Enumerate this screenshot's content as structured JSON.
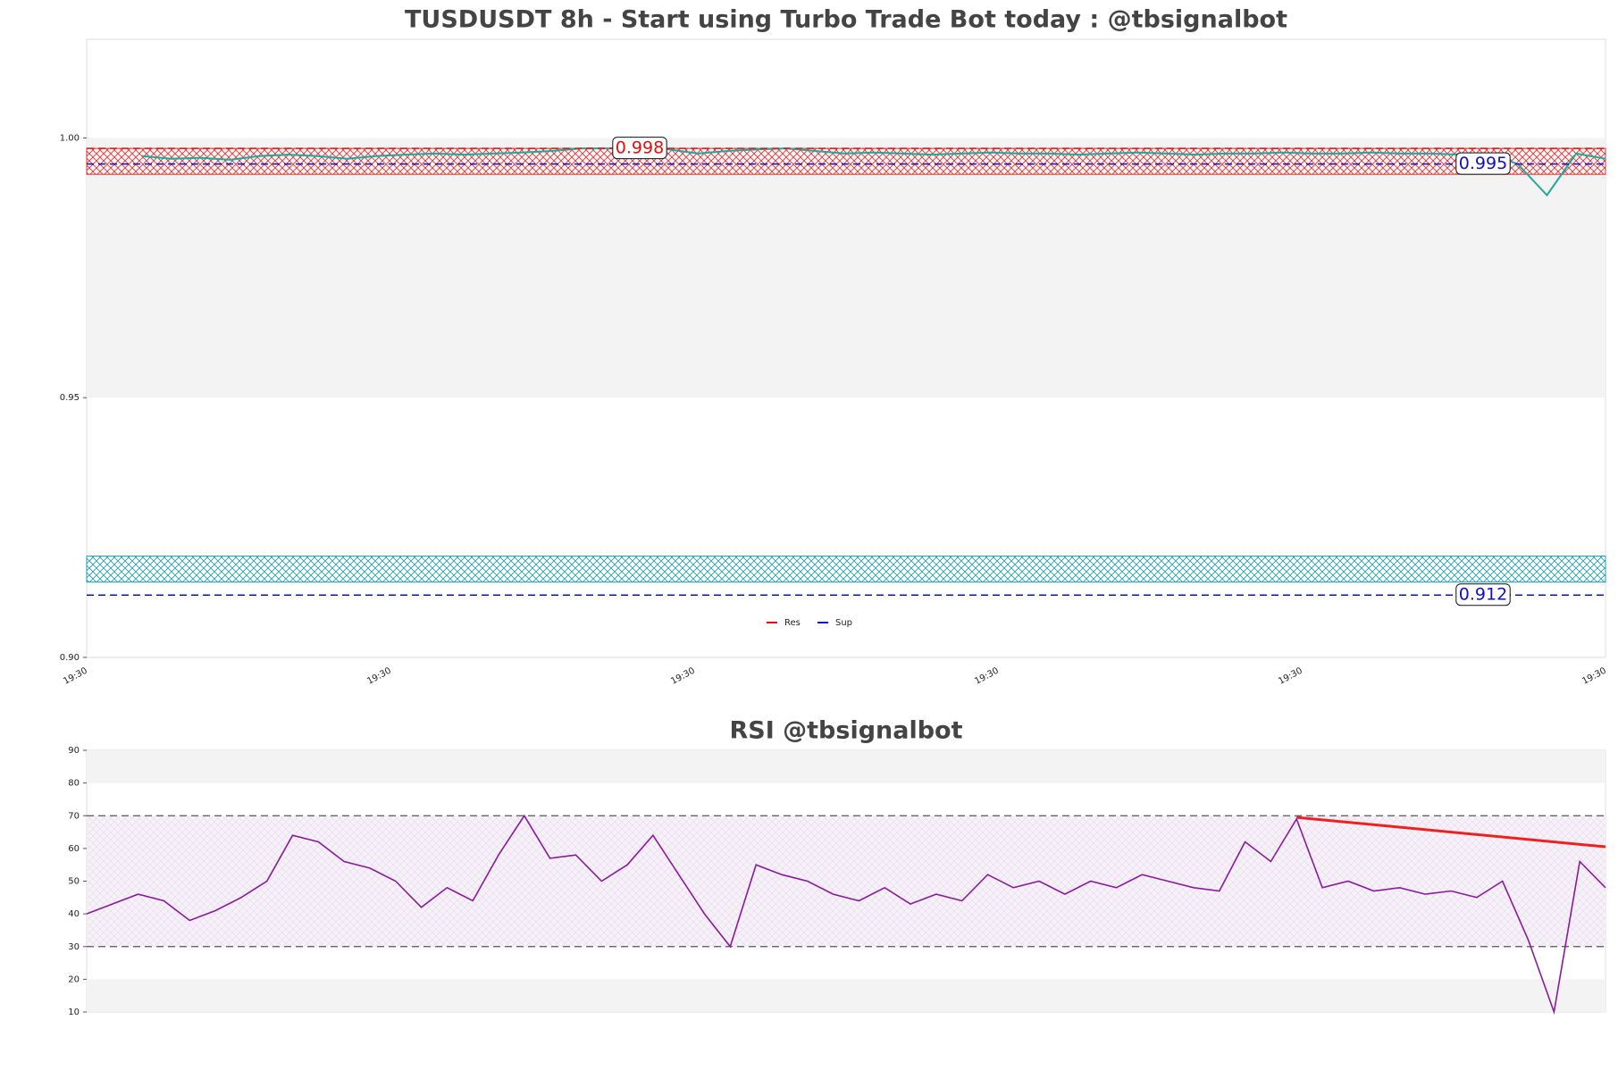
{
  "chart_data": [
    {
      "type": "line",
      "title": "TUSDUSDT 8h - Start using Turbo Trade Bot today : @tbsignalbot",
      "categories": [
        "19:30",
        null,
        null,
        null,
        null,
        null,
        null,
        null,
        null,
        null,
        "19:30",
        null,
        null,
        null,
        null,
        null,
        null,
        null,
        null,
        null,
        "19:30",
        null,
        null,
        null,
        null,
        null,
        null,
        null,
        null,
        null,
        "19:30",
        null,
        null,
        null,
        null,
        null,
        null,
        null,
        null,
        null,
        "19:30",
        null,
        null,
        null,
        null,
        null,
        null,
        null,
        null,
        null,
        "19:30"
      ],
      "series": [
        {
          "color": "#26a69a",
          "values": [
            0.9965,
            0.996,
            0.9962,
            0.9958,
            0.9965,
            0.9968,
            0.9965,
            0.996,
            0.9965,
            0.9968,
            0.997,
            0.9968,
            0.997,
            0.9972,
            0.9975,
            0.998,
            0.998,
            0.9985,
            0.9978,
            0.997,
            0.9975,
            0.9978,
            0.998,
            0.9975,
            0.997,
            0.9972,
            0.997,
            0.9968,
            0.997,
            0.9972,
            0.997,
            0.997,
            0.9968,
            0.997,
            0.9972,
            0.997,
            0.9968,
            0.997,
            0.997,
            0.9972,
            0.997,
            0.997,
            0.9972,
            0.997,
            0.997,
            0.9968,
            0.997,
            0.995,
            0.989,
            0.997,
            0.996
          ]
        }
      ],
      "levels": [
        {
          "name": "Res",
          "color": "#e01010",
          "values": [
            0.998
          ]
        },
        {
          "name": "Sup",
          "color": "#1010c0",
          "values": [
            0.995,
            0.912
          ]
        }
      ],
      "zones": [
        {
          "range": [
            0.993,
            0.998
          ],
          "color": "#e03030"
        },
        {
          "range": [
            0.9145,
            0.9195
          ],
          "color": "#1a9bb0"
        }
      ],
      "ylim": [
        0.9,
        1.019
      ],
      "yticks": [
        {
          "value": 0.9,
          "label": "0.90"
        },
        0.95,
        {
          "value": 1,
          "label": "1.00"
        }
      ]
    },
    {
      "type": "line",
      "title": "RSI @tbsignalbot",
      "series": [
        {
          "color": "#8b1a9b",
          "values": [
            40,
            43,
            46,
            44,
            38,
            41,
            45,
            50,
            64,
            62,
            56,
            54,
            50,
            42,
            48,
            44,
            58,
            70,
            57,
            58,
            50,
            55,
            64,
            52,
            40,
            30,
            55,
            52,
            50,
            46,
            44,
            48,
            43,
            46,
            44,
            52,
            48,
            50,
            46,
            50,
            48,
            52,
            50,
            48,
            47,
            62,
            56,
            69,
            48,
            50,
            47,
            48,
            46,
            47,
            45,
            50,
            32,
            10,
            56,
            48
          ]
        }
      ],
      "trendline": {
        "color": "#ee2020",
        "x": [
          47,
          59
        ],
        "values": [
          69.5,
          60.5
        ]
      },
      "overbought": 70,
      "oversold": 30,
      "ylim": [
        10,
        90
      ],
      "yticks": [
        10,
        20,
        30,
        40,
        50,
        60,
        70,
        80,
        90
      ]
    }
  ]
}
